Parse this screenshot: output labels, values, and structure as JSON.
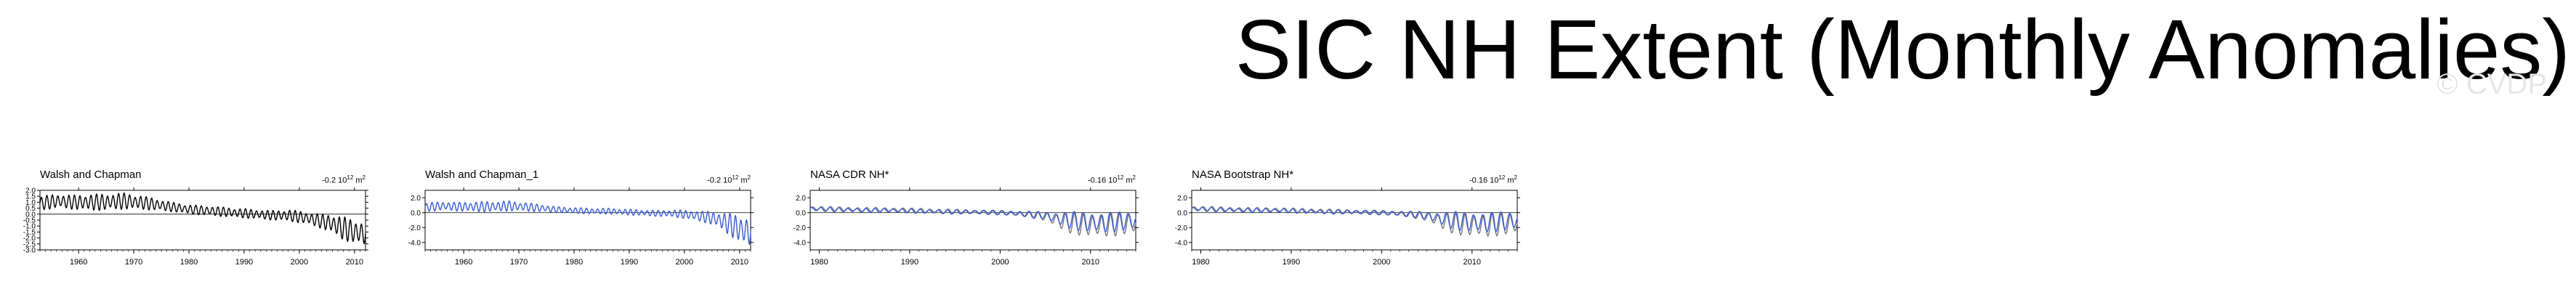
{
  "header": {
    "title": "SIC NH Extent (Monthly Anomalies)",
    "watermark": "© CVDP"
  },
  "colors": {
    "observed_black": "#000000",
    "model_blue": "#3a5bd9",
    "watermark_gray": "#e6e6e6"
  },
  "chart_data": [
    {
      "type": "line",
      "title": "Walsh and Chapman",
      "stat_value": "-0.2",
      "stat_unit": "10",
      "stat_exp": "12",
      "stat_tail": " m",
      "stat_sq": "2",
      "xlim": [
        1953,
        2012
      ],
      "ylim": [
        -3.0,
        2.0
      ],
      "ytick_labels": [
        "2.0",
        "1.5",
        "1.0",
        "0.5",
        "0.0",
        "-0.5",
        "-1.0",
        "-1.5",
        "-2.0",
        "-2.5",
        "-3.0"
      ],
      "xticks": [
        1960,
        1970,
        1980,
        1990,
        2000,
        2010
      ],
      "series": [
        {
          "color": "#000000",
          "x": [
            1953,
            1956,
            1959,
            1962,
            1965,
            1968,
            1971,
            1974,
            1977,
            1980,
            1983,
            1986,
            1989,
            1992,
            1995,
            1998,
            2001,
            2004,
            2006,
            2008,
            2010,
            2011
          ],
          "y": [
            0.9,
            1.1,
            1.0,
            1.0,
            1.0,
            1.1,
            1.0,
            0.8,
            0.6,
            0.4,
            0.3,
            0.2,
            0.1,
            0.0,
            -0.1,
            -0.1,
            -0.3,
            -0.6,
            -0.8,
            -1.2,
            -1.5,
            -1.6
          ],
          "amplitude": [
            0.6,
            0.6,
            0.6,
            0.7,
            0.7,
            0.7,
            0.6,
            0.5,
            0.4,
            0.4,
            0.4,
            0.4,
            0.4,
            0.4,
            0.4,
            0.5,
            0.5,
            0.6,
            0.8,
            1.0,
            1.0,
            1.0
          ]
        }
      ]
    },
    {
      "type": "line",
      "title": "Walsh and Chapman_1",
      "stat_value": "-0.2",
      "stat_unit": "10",
      "stat_exp": "12",
      "stat_tail": " m",
      "stat_sq": "2",
      "xlim": [
        1953,
        2012
      ],
      "ylim": [
        -5.0,
        3.0
      ],
      "ytick_labels": [
        "2.0",
        "0.0",
        "-2.0",
        "-4.0"
      ],
      "xticks": [
        1960,
        1970,
        1980,
        1990,
        2000,
        2010
      ],
      "series": [
        {
          "color": "#3a5bd9",
          "x": [
            1953,
            1956,
            1959,
            1962,
            1965,
            1968,
            1971,
            1974,
            1977,
            1980,
            1983,
            1986,
            1989,
            1992,
            1995,
            1998,
            2001,
            2004,
            2006,
            2008,
            2010,
            2011
          ],
          "y": [
            0.7,
            0.9,
            0.8,
            0.8,
            0.8,
            0.9,
            0.8,
            0.6,
            0.4,
            0.3,
            0.2,
            0.2,
            0.1,
            0.0,
            -0.1,
            -0.1,
            -0.3,
            -0.6,
            -0.9,
            -1.5,
            -2.2,
            -2.5
          ],
          "amplitude": [
            0.6,
            0.6,
            0.6,
            0.7,
            0.7,
            0.7,
            0.6,
            0.5,
            0.4,
            0.4,
            0.4,
            0.4,
            0.4,
            0.4,
            0.4,
            0.5,
            0.6,
            0.8,
            1.0,
            1.5,
            1.8,
            2.0
          ]
        }
      ]
    },
    {
      "type": "line",
      "title": "NASA CDR NH*",
      "stat_value": "-0.16",
      "stat_unit": "10",
      "stat_exp": "12",
      "stat_tail": " m",
      "stat_sq": "2",
      "xlim": [
        1979,
        2015
      ],
      "ylim": [
        -5.0,
        3.0
      ],
      "ytick_labels": [
        "2.0",
        "0.0",
        "-2.0",
        "-4.0"
      ],
      "xticks": [
        1980,
        1990,
        2000,
        2010
      ],
      "series": [
        {
          "color": "#777777",
          "x": [
            1979,
            1982,
            1985,
            1988,
            1991,
            1994,
            1997,
            2000,
            2003,
            2005,
            2007,
            2009,
            2011,
            2013,
            2014
          ],
          "y": [
            0.6,
            0.5,
            0.4,
            0.4,
            0.3,
            0.2,
            0.1,
            0.0,
            -0.2,
            -0.5,
            -1.2,
            -1.5,
            -1.7,
            -1.5,
            -1.4
          ],
          "amplitude": [
            0.3,
            0.3,
            0.3,
            0.3,
            0.3,
            0.3,
            0.3,
            0.3,
            0.4,
            0.6,
            1.4,
            1.6,
            1.8,
            1.6,
            1.5
          ]
        },
        {
          "color": "#3a5bd9",
          "x": [
            1979,
            1982,
            1985,
            1988,
            1991,
            1994,
            1997,
            2000,
            2003,
            2005,
            2007,
            2009,
            2011,
            2013,
            2014
          ],
          "y": [
            0.5,
            0.4,
            0.3,
            0.3,
            0.2,
            0.1,
            0.1,
            0.0,
            -0.2,
            -0.4,
            -0.9,
            -1.2,
            -1.4,
            -1.2,
            -1.1
          ],
          "amplitude": [
            0.3,
            0.3,
            0.3,
            0.3,
            0.3,
            0.3,
            0.3,
            0.3,
            0.4,
            0.5,
            1.1,
            1.3,
            1.5,
            1.3,
            1.2
          ]
        }
      ]
    },
    {
      "type": "line",
      "title": "NASA Bootstrap NH*",
      "stat_value": "-0.16",
      "stat_unit": "10",
      "stat_exp": "12",
      "stat_tail": " m",
      "stat_sq": "2",
      "xlim": [
        1979,
        2015
      ],
      "ylim": [
        -5.0,
        3.0
      ],
      "ytick_labels": [
        "2.0",
        "0.0",
        "-2.0",
        "-4.0"
      ],
      "xticks": [
        1980,
        1990,
        2000,
        2010
      ],
      "series": [
        {
          "color": "#777777",
          "x": [
            1979,
            1982,
            1985,
            1988,
            1991,
            1994,
            1997,
            2000,
            2003,
            2005,
            2007,
            2009,
            2011,
            2013,
            2014
          ],
          "y": [
            0.6,
            0.5,
            0.4,
            0.4,
            0.3,
            0.2,
            0.1,
            0.0,
            -0.2,
            -0.5,
            -1.2,
            -1.5,
            -1.7,
            -1.5,
            -1.4
          ],
          "amplitude": [
            0.3,
            0.3,
            0.3,
            0.3,
            0.3,
            0.3,
            0.3,
            0.3,
            0.4,
            0.6,
            1.4,
            1.6,
            1.8,
            1.6,
            1.5
          ]
        },
        {
          "color": "#3a5bd9",
          "x": [
            1979,
            1982,
            1985,
            1988,
            1991,
            1994,
            1997,
            2000,
            2003,
            2005,
            2007,
            2009,
            2011,
            2013,
            2014
          ],
          "y": [
            0.5,
            0.4,
            0.3,
            0.3,
            0.2,
            0.1,
            0.1,
            0.0,
            -0.2,
            -0.4,
            -0.9,
            -1.2,
            -1.4,
            -1.2,
            -1.1
          ],
          "amplitude": [
            0.3,
            0.3,
            0.3,
            0.3,
            0.3,
            0.3,
            0.3,
            0.3,
            0.4,
            0.5,
            1.1,
            1.3,
            1.5,
            1.3,
            1.2
          ]
        }
      ]
    }
  ]
}
